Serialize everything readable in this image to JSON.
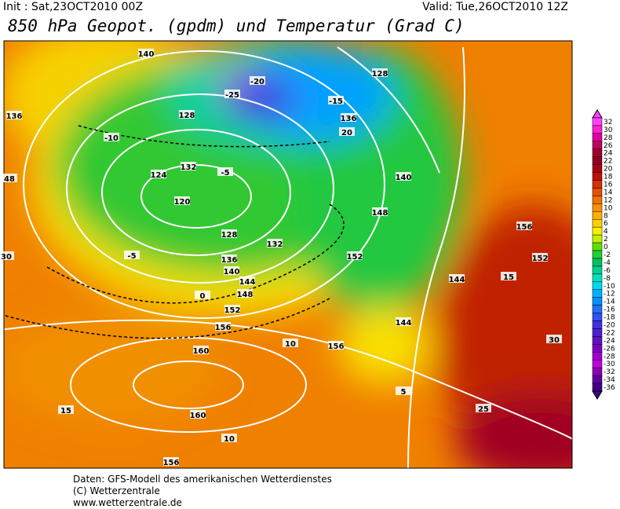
{
  "header": {
    "init": "Init : Sat,23OCT2010 00Z",
    "valid": "Valid: Tue,26OCT2010 12Z",
    "title": "850 hPa Geopot. (gpdm) und Temperatur (Grad C)"
  },
  "colorbar": {
    "ticks": [
      32,
      30,
      28,
      26,
      24,
      22,
      20,
      18,
      16,
      14,
      12,
      10,
      8,
      6,
      4,
      2,
      0,
      -2,
      -4,
      -6,
      -8,
      -10,
      -12,
      -14,
      -16,
      -18,
      -20,
      -22,
      -24,
      -26,
      -28,
      -30,
      -32,
      -34,
      -36
    ],
    "colors": [
      "#ff40ff",
      "#ff20d0",
      "#e000a0",
      "#c00060",
      "#a00030",
      "#900020",
      "#a80010",
      "#c01000",
      "#d83000",
      "#e85000",
      "#f07000",
      "#f89000",
      "#ffb000",
      "#ffd000",
      "#f8f000",
      "#c0f000",
      "#60e000",
      "#20d030",
      "#00c060",
      "#00d090",
      "#00e0c0",
      "#00d8f0",
      "#00b0ff",
      "#0090ff",
      "#2070ff",
      "#3050f0",
      "#4030e0",
      "#5020d0",
      "#6010c0",
      "#8000c0",
      "#a000d0",
      "#c000e0",
      "#9000b0",
      "#6000a0",
      "#400080"
    ]
  },
  "contours": {
    "labels": [
      "140",
      "136",
      "132",
      "128",
      "124",
      "120",
      "128",
      "132",
      "136",
      "140",
      "144",
      "148",
      "152",
      "156",
      "160",
      "160",
      "156",
      "156",
      "152",
      "148",
      "144",
      "140",
      "136",
      "128",
      "-5",
      "-10",
      "-15",
      "-20",
      "-25",
      "-5",
      "0",
      "5",
      "10",
      "15",
      "20",
      "25",
      "30",
      "10",
      "15",
      "152",
      "156",
      "144",
      "48",
      "30"
    ]
  },
  "footer": {
    "lines": [
      "Daten: GFS-Modell des amerikanischen Wetterdienstes",
      "(C) Wetterzentrale",
      "www.wetterzentrale.de"
    ]
  }
}
